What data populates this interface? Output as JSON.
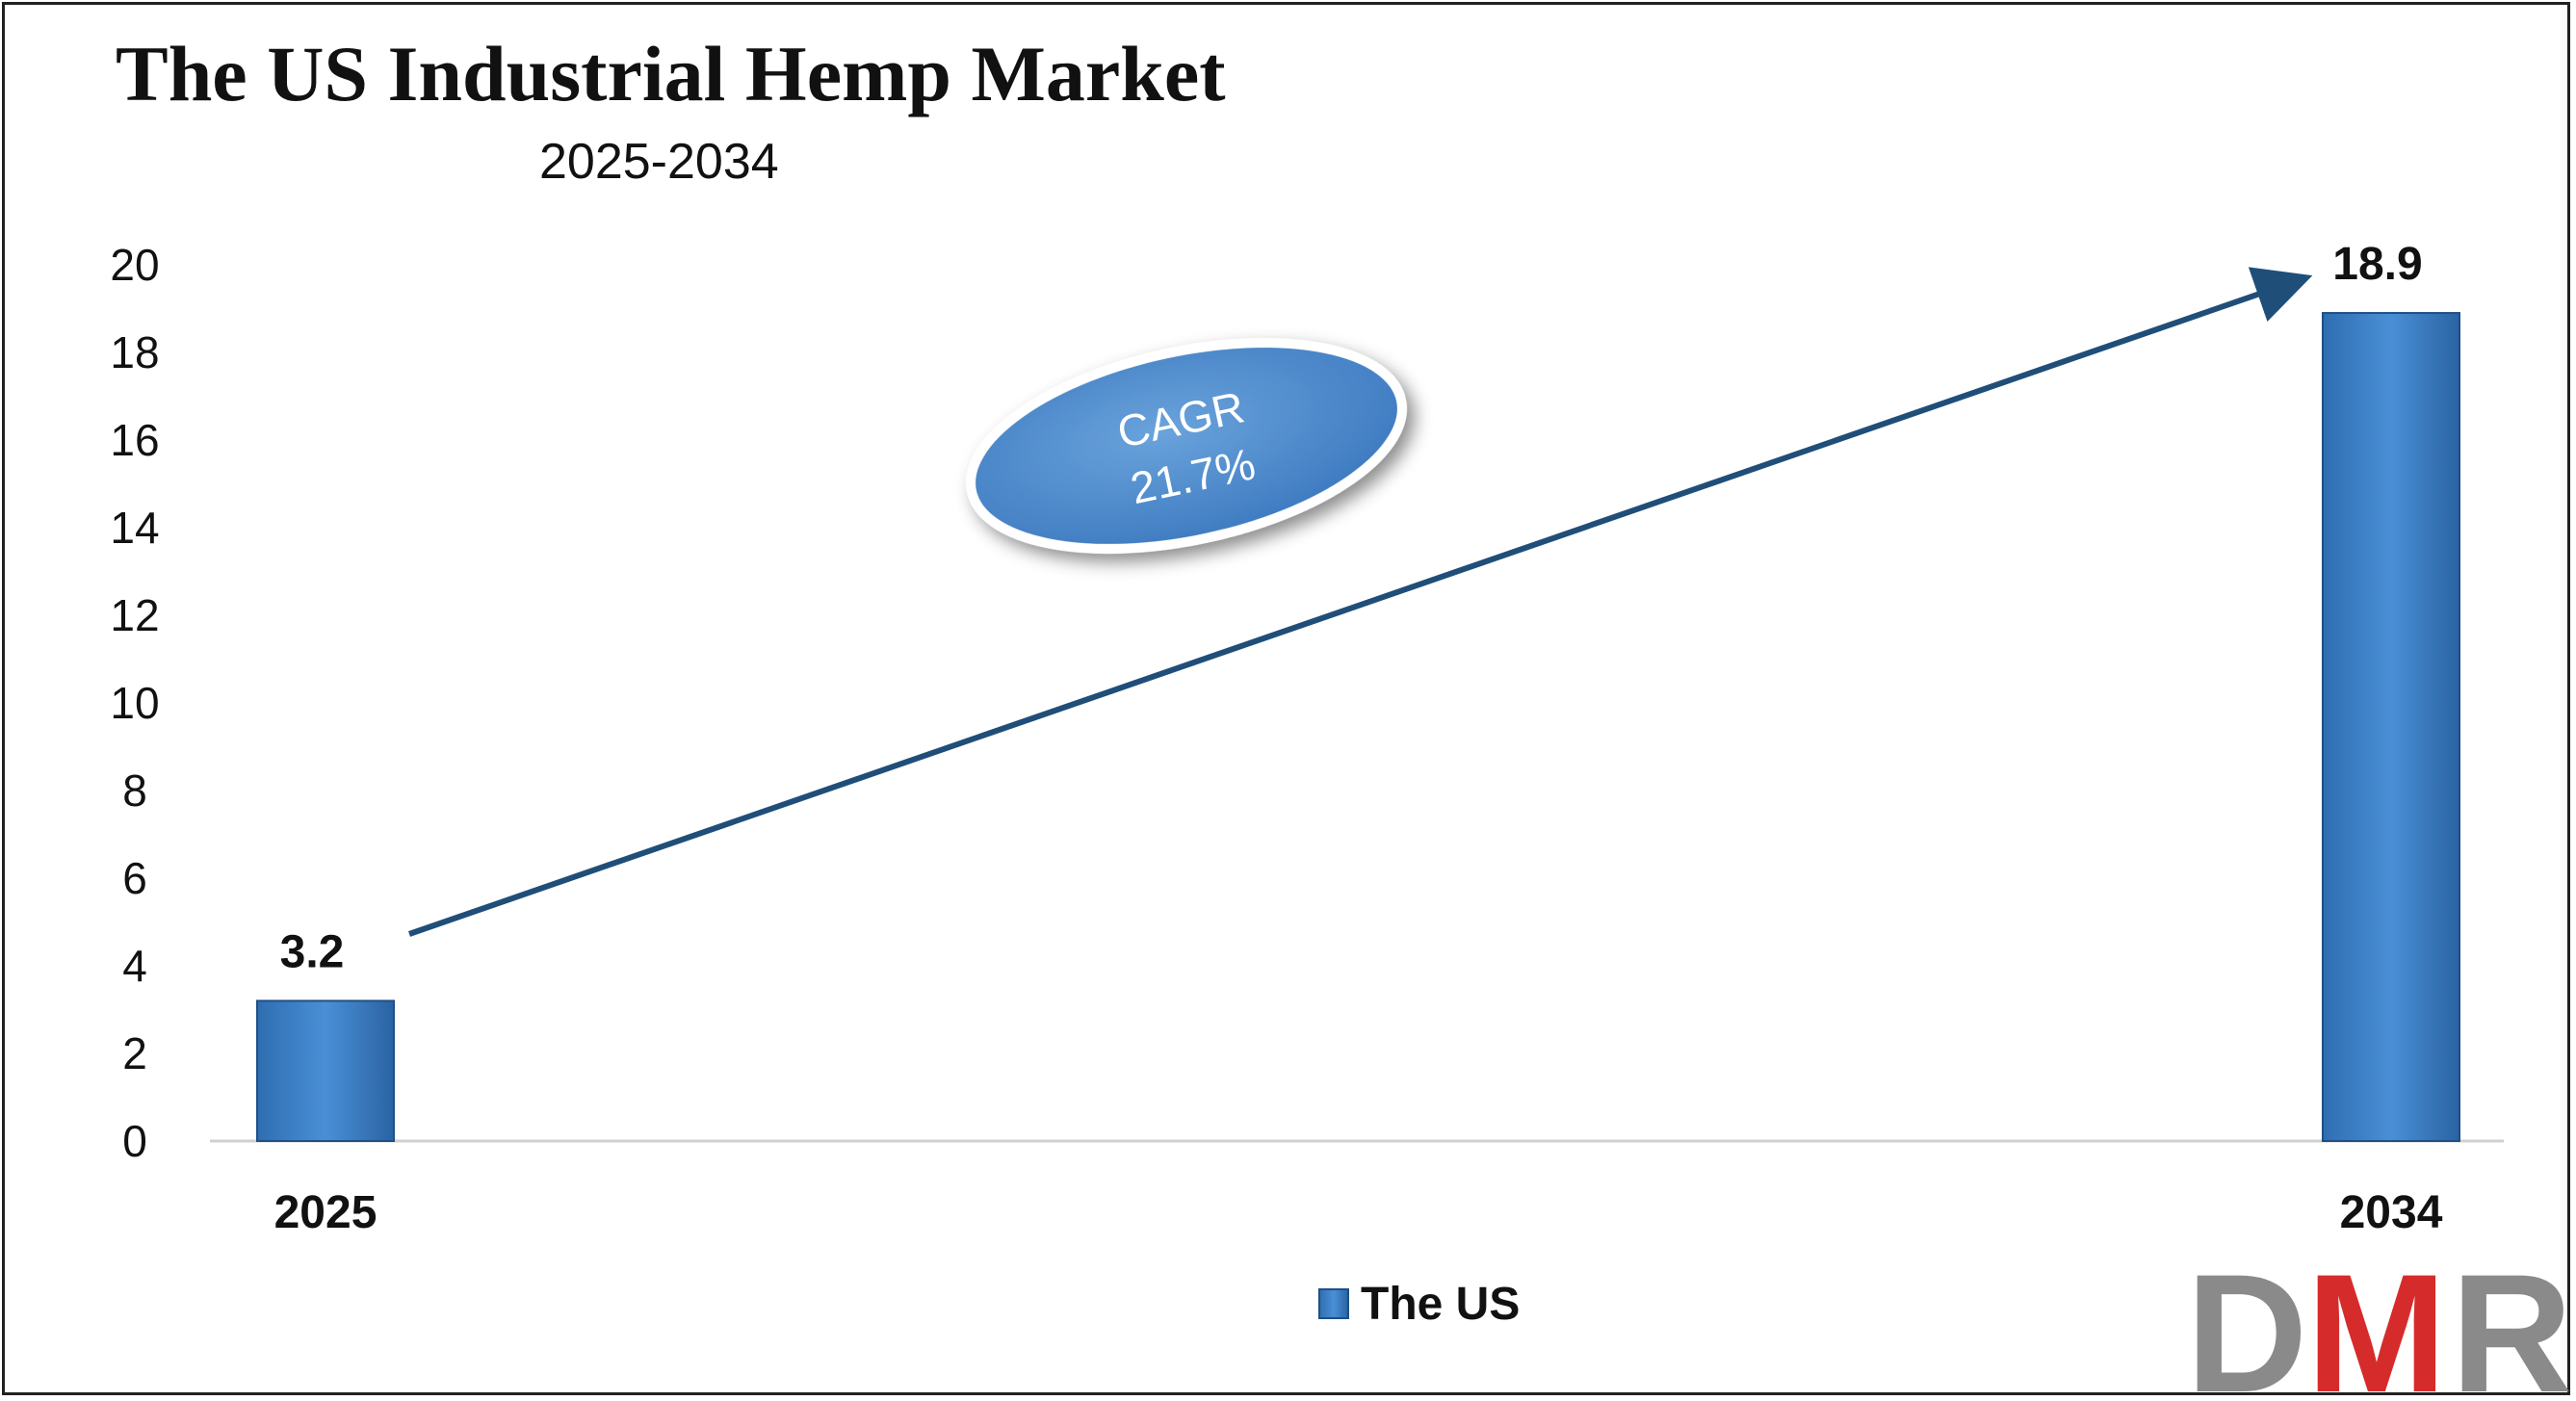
{
  "chart_data": {
    "type": "bar",
    "title": "The US Industrial Hemp Market",
    "subtitle": "2025-2034",
    "categories": [
      "2025",
      "2034"
    ],
    "series": [
      {
        "name": "The US",
        "values": [
          3.2,
          18.9
        ],
        "color": "#3a7cc2"
      }
    ],
    "data_labels": [
      "3.2",
      "18.9"
    ],
    "ylim": [
      0,
      20
    ],
    "yticks": [
      0,
      2,
      4,
      6,
      8,
      10,
      12,
      14,
      16,
      18,
      20
    ],
    "grid": false,
    "legend_position": "bottom-center",
    "annotation": {
      "line1": "CAGR",
      "line2": "21.7%"
    }
  },
  "logo": {
    "letters": [
      "D",
      "M",
      "R"
    ],
    "colors": [
      "#8a8a8a",
      "#d62b2b",
      "#8a8a8a"
    ]
  }
}
